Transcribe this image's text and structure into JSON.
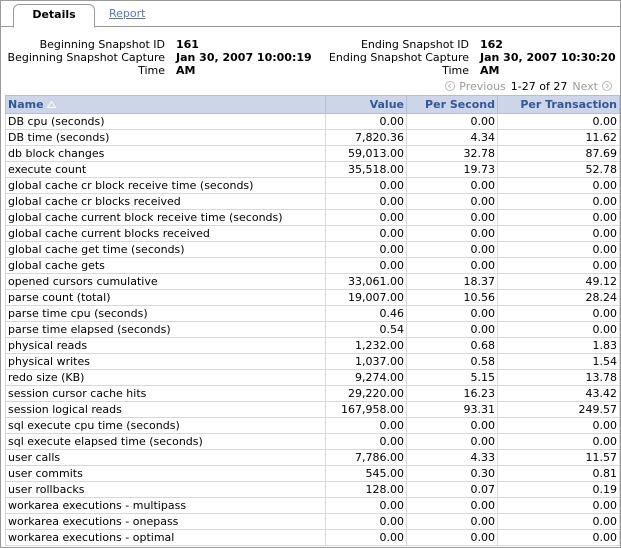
{
  "tabs": {
    "details": "Details",
    "report": "Report"
  },
  "summary": {
    "begin_id_label": "Beginning Snapshot ID",
    "begin_id": "161",
    "begin_capture_label": "Beginning Snapshot Capture",
    "begin_capture_label2": "Time",
    "begin_capture": "Jan 30, 2007 10:00:19",
    "begin_capture2": "AM",
    "end_id_label": "Ending Snapshot ID",
    "end_id": "162",
    "end_capture_label": "Ending Snapshot Capture",
    "end_capture_label2": "Time",
    "end_capture": "Jan 30, 2007 10:30:20",
    "end_capture2": "AM"
  },
  "pager": {
    "previous": "Previous",
    "range": "1-27 of 27",
    "next": "Next"
  },
  "table": {
    "columns": [
      "Name",
      "Value",
      "Per Second",
      "Per Transaction"
    ],
    "rows": [
      [
        "DB cpu (seconds)",
        "0.00",
        "0.00",
        "0.00"
      ],
      [
        "DB time (seconds)",
        "7,820.36",
        "4.34",
        "11.62"
      ],
      [
        "db block changes",
        "59,013.00",
        "32.78",
        "87.69"
      ],
      [
        "execute count",
        "35,518.00",
        "19.73",
        "52.78"
      ],
      [
        "global cache cr block receive time (seconds)",
        "0.00",
        "0.00",
        "0.00"
      ],
      [
        "global cache cr blocks received",
        "0.00",
        "0.00",
        "0.00"
      ],
      [
        "global cache current block receive time (seconds)",
        "0.00",
        "0.00",
        "0.00"
      ],
      [
        "global cache current blocks received",
        "0.00",
        "0.00",
        "0.00"
      ],
      [
        "global cache get time (seconds)",
        "0.00",
        "0.00",
        "0.00"
      ],
      [
        "global cache gets",
        "0.00",
        "0.00",
        "0.00"
      ],
      [
        "opened cursors cumulative",
        "33,061.00",
        "18.37",
        "49.12"
      ],
      [
        "parse count (total)",
        "19,007.00",
        "10.56",
        "28.24"
      ],
      [
        "parse time cpu (seconds)",
        "0.46",
        "0.00",
        "0.00"
      ],
      [
        "parse time elapsed (seconds)",
        "0.54",
        "0.00",
        "0.00"
      ],
      [
        "physical reads",
        "1,232.00",
        "0.68",
        "1.83"
      ],
      [
        "physical writes",
        "1,037.00",
        "0.58",
        "1.54"
      ],
      [
        "redo size (KB)",
        "9,274.00",
        "5.15",
        "13.78"
      ],
      [
        "session cursor cache hits",
        "29,220.00",
        "16.23",
        "43.42"
      ],
      [
        "session logical reads",
        "167,958.00",
        "93.31",
        "249.57"
      ],
      [
        "sql execute cpu time (seconds)",
        "0.00",
        "0.00",
        "0.00"
      ],
      [
        "sql execute elapsed time (seconds)",
        "0.00",
        "0.00",
        "0.00"
      ],
      [
        "user calls",
        "7,786.00",
        "4.33",
        "11.57"
      ],
      [
        "user commits",
        "545.00",
        "0.30",
        "0.81"
      ],
      [
        "user rollbacks",
        "128.00",
        "0.07",
        "0.19"
      ],
      [
        "workarea executions - multipass",
        "0.00",
        "0.00",
        "0.00"
      ],
      [
        "workarea executions - onepass",
        "0.00",
        "0.00",
        "0.00"
      ],
      [
        "workarea executions - optimal",
        "0.00",
        "0.00",
        "0.00"
      ]
    ]
  },
  "colors": {
    "header_bg": "#ccd6e8",
    "header_text": "#335599",
    "link": "#5577bb"
  },
  "icons": {
    "sort": "sort-ascending-icon",
    "prev": "previous-circle-icon",
    "next": "next-circle-icon"
  }
}
